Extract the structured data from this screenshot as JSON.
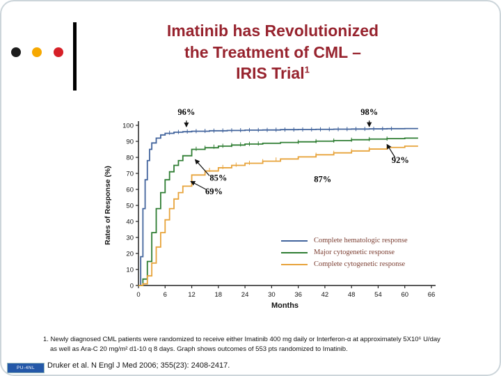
{
  "slide": {
    "title_lines": [
      "Imatinib has Revolutionized",
      "the Treatment of CML –",
      "IRIS Trial"
    ],
    "title_superscript": "1",
    "footnote_lines": [
      "1. Newly diagnosed CML patients were randomized to receive either Imatinib 400 mg daily or Interferon-α at approximately 5X10⁶ U/day",
      "as well as Ara-C 20 mg/m² d1-10 q 8 days.  Graph shows outcomes of 553 pts randomized to Imatinib."
    ],
    "citation": "Druker et al. N Engl J Med 2006; 355(23): 2408-2417.",
    "badge_text": "PU-4NL",
    "accent_colors": {
      "dot1": "#1c1c1c",
      "dot2": "#f6a800",
      "dot3": "#d62027",
      "bar": "#000000",
      "title": "#97232e"
    }
  },
  "chart_data": {
    "type": "line",
    "title": "",
    "xlabel": "Months",
    "ylabel": "Rates of Response (%)",
    "xlim": [
      0,
      66
    ],
    "ylim": [
      0,
      100
    ],
    "xticks": [
      0,
      6,
      12,
      18,
      24,
      30,
      36,
      42,
      48,
      54,
      60,
      66
    ],
    "yticks": [
      0,
      10,
      20,
      30,
      40,
      50,
      60,
      70,
      80,
      90,
      100
    ],
    "grid": false,
    "legend_position": "inside lower right",
    "series": [
      {
        "name": "Complete hematologic response",
        "color": "#41639c",
        "x": [
          0,
          0.5,
          1,
          1.5,
          2,
          2.5,
          3,
          4,
          5,
          6,
          8,
          10,
          12,
          16,
          20,
          24,
          28,
          32,
          36,
          40,
          44,
          48,
          52,
          56,
          60,
          63
        ],
        "y": [
          0,
          18,
          48,
          66,
          78,
          85,
          89,
          92,
          94,
          95,
          95.7,
          96,
          96.3,
          96.6,
          96.8,
          97,
          97.1,
          97.3,
          97.4,
          97.5,
          97.6,
          97.7,
          97.8,
          97.9,
          98,
          98
        ],
        "censor_ticks": [
          7,
          9,
          11,
          13,
          15,
          17,
          19,
          21,
          23,
          25,
          27,
          29,
          31,
          33,
          35,
          37,
          39,
          41,
          43,
          45,
          47,
          49,
          51,
          53,
          55,
          57
        ]
      },
      {
        "name": "Major cytogenetic response",
        "color": "#2e7d32",
        "x": [
          0,
          1,
          2,
          3,
          4,
          5,
          6,
          7,
          8,
          9,
          10,
          12,
          15,
          18,
          21,
          24,
          28,
          32,
          36,
          40,
          44,
          48,
          52,
          56,
          60,
          63
        ],
        "y": [
          0,
          4,
          15,
          33,
          48,
          58,
          66,
          71,
          75,
          78,
          81,
          85,
          86,
          87,
          87.7,
          88.3,
          88.8,
          89.3,
          89.7,
          90.1,
          90.5,
          91,
          91.4,
          91.7,
          92,
          92
        ],
        "censor_ticks": [
          13,
          15,
          17,
          19,
          21,
          23,
          25,
          27,
          36,
          40,
          44,
          48,
          52,
          56
        ]
      },
      {
        "name": "Complete cytogenetic response",
        "color": "#e7a33a",
        "x": [
          0,
          1,
          2,
          3,
          4,
          5,
          6,
          7,
          8,
          9,
          10,
          12,
          15,
          18,
          21,
          24,
          28,
          32,
          36,
          40,
          44,
          48,
          52,
          56,
          60,
          63
        ],
        "y": [
          0,
          1,
          6,
          14,
          24,
          33,
          41,
          48,
          54,
          58,
          62,
          69,
          71.5,
          73.5,
          75,
          76.3,
          77.6,
          79,
          80.3,
          81.6,
          82.8,
          84,
          85.2,
          86.2,
          87,
          87
        ],
        "censor_ticks": [
          16,
          19,
          22,
          25,
          28,
          31,
          40,
          44,
          48,
          52,
          56
        ]
      }
    ],
    "annotations": [
      {
        "text": "96%",
        "x": 10.8,
        "y": 106.5,
        "ax": 10.8,
        "ay": 103,
        "tx": 10.8,
        "ty": 99.2
      },
      {
        "text": "98%",
        "x": 52,
        "y": 106.5,
        "ax": 52,
        "ay": 103,
        "tx": 52,
        "ty": 99.3
      },
      {
        "text": "92%",
        "x": 59,
        "y": 76.5,
        "ax": 57.8,
        "ay": 80,
        "tx": 56,
        "ty": 88
      },
      {
        "text": "85%",
        "x": 18,
        "y": 65.5,
        "ax": 16,
        "ay": 68.5,
        "tx": 12.8,
        "ty": 78.5
      },
      {
        "text": "69%",
        "x": 17,
        "y": 57,
        "ax": 15.2,
        "ay": 60,
        "tx": 11.8,
        "ty": 65
      },
      {
        "text": "87%",
        "x": 41.5,
        "y": 64.5
      }
    ]
  }
}
